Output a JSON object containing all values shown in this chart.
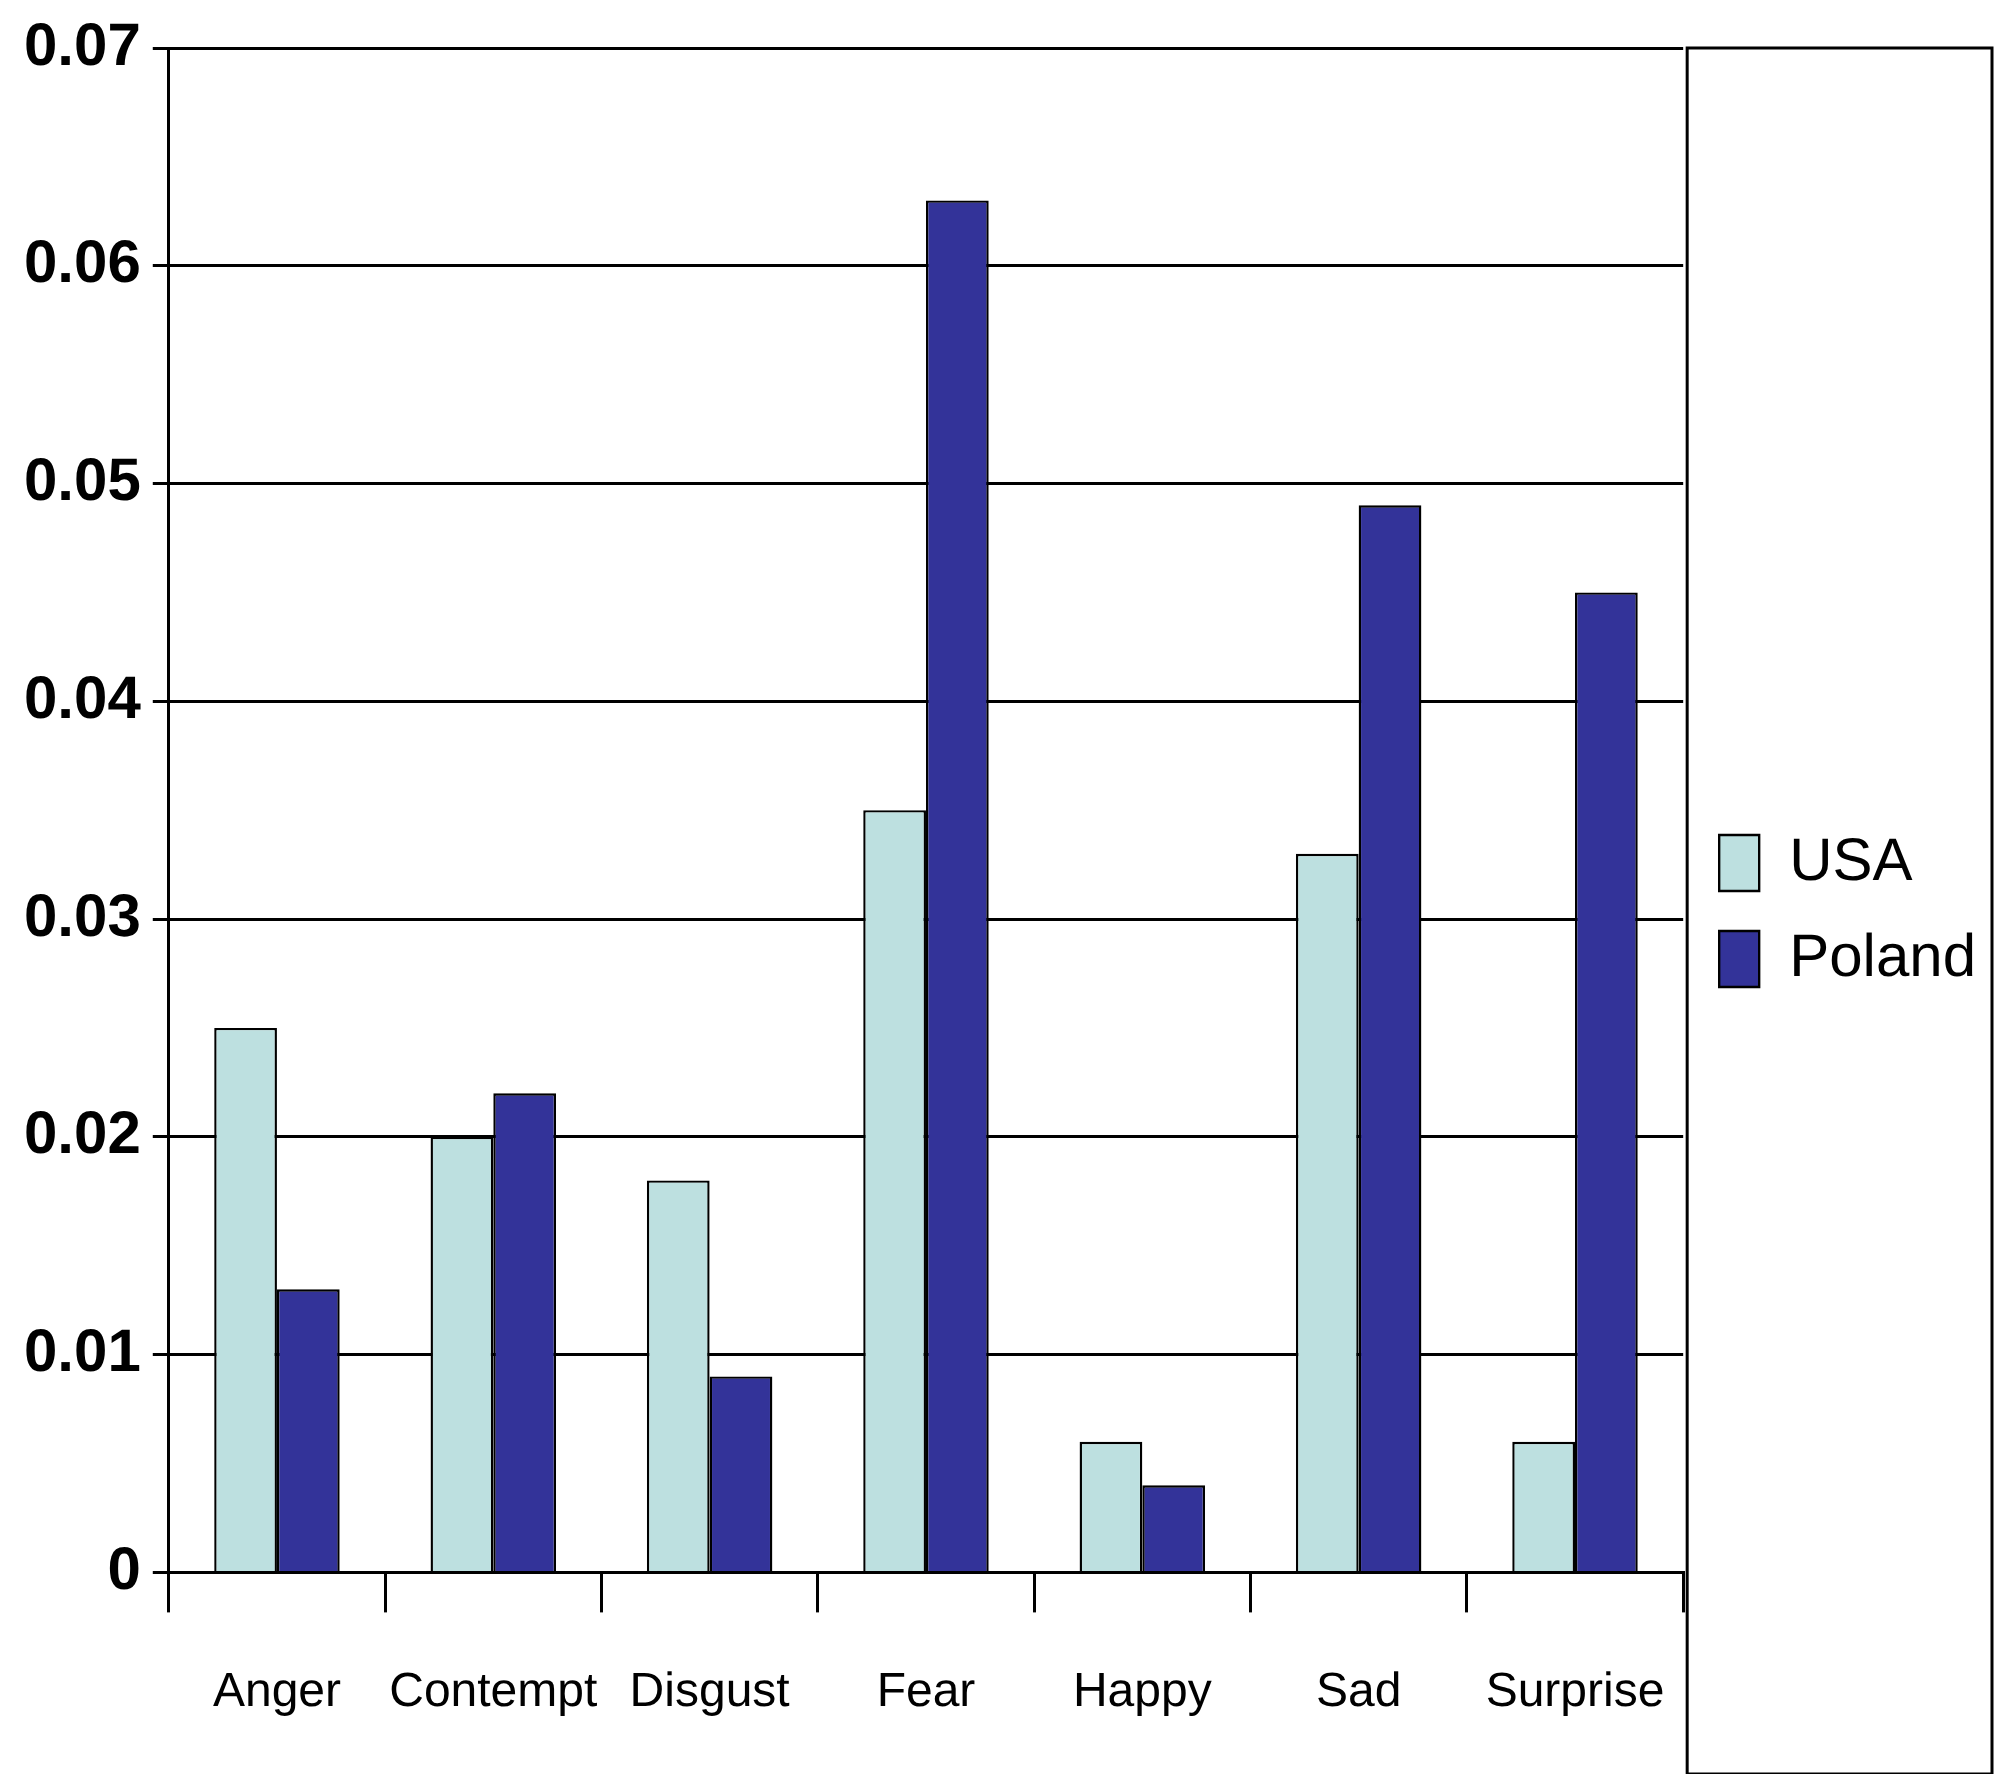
{
  "chart_data": {
    "type": "bar",
    "categories": [
      "Anger",
      "Contempt",
      "Disgust",
      "Fear",
      "Happy",
      "Sad",
      "Surprise"
    ],
    "series": [
      {
        "name": "USA",
        "color": "#bde0e0",
        "values": [
          0.025,
          0.02,
          0.018,
          0.035,
          0.006,
          0.033,
          0.006
        ]
      },
      {
        "name": "Poland",
        "color": "#333399",
        "values": [
          0.013,
          0.022,
          0.009,
          0.063,
          0.004,
          0.049,
          0.045
        ]
      }
    ],
    "ylim": [
      0,
      0.07
    ],
    "yticks": [
      0,
      0.01,
      0.02,
      0.03,
      0.04,
      0.05,
      0.06,
      0.07
    ],
    "grid": "y",
    "legend": "right"
  }
}
